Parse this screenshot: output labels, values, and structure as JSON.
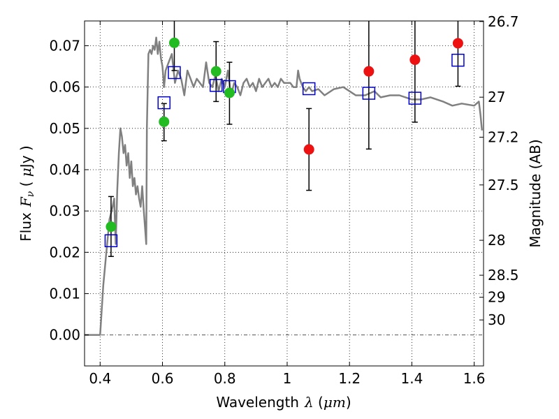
{
  "chart_data": {
    "type": "scatter",
    "xlabel": {
      "text": "Wavelength",
      "symbol": "λ",
      "unit_open": " (",
      "unit": "μm",
      "unit_close": ")"
    },
    "ylabel": {
      "text": "Flux",
      "symbol": "F",
      "subscript": "ν",
      "unit_open": " ( ",
      "unit": "μ",
      "unit_rest": "Jy )"
    },
    "y2label": "Magnitude (AB)",
    "xlim": [
      0.35,
      1.63
    ],
    "ylim": [
      -0.0075,
      0.076
    ],
    "x_ticks": [
      {
        "value": 0.4,
        "label": "0.4"
      },
      {
        "value": 0.6,
        "label": "0.6"
      },
      {
        "value": 0.8,
        "label": "0.8"
      },
      {
        "value": 1.0,
        "label": "1"
      },
      {
        "value": 1.2,
        "label": "1.2"
      },
      {
        "value": 1.4,
        "label": "1.4"
      },
      {
        "value": 1.6,
        "label": "1.6"
      }
    ],
    "y_ticks": [
      {
        "value": 0.0,
        "label": "0.00"
      },
      {
        "value": 0.01,
        "label": "0.01"
      },
      {
        "value": 0.02,
        "label": "0.02"
      },
      {
        "value": 0.03,
        "label": "0.03"
      },
      {
        "value": 0.04,
        "label": "0.04"
      },
      {
        "value": 0.05,
        "label": "0.05"
      },
      {
        "value": 0.06,
        "label": "0.06"
      },
      {
        "value": 0.07,
        "label": "0.07"
      }
    ],
    "mag_ticks": [
      {
        "mag": 26.7,
        "label": "26.7"
      },
      {
        "mag": 27,
        "label": "27"
      },
      {
        "mag": 27.2,
        "label": "27.2"
      },
      {
        "mag": 27.5,
        "label": "27.5"
      },
      {
        "mag": 28,
        "label": "28"
      },
      {
        "mag": 28.5,
        "label": "28.5"
      },
      {
        "mag": 29,
        "label": "29"
      },
      {
        "mag": 30,
        "label": "30"
      }
    ],
    "grid": true,
    "colors": {
      "spectrum": "#808080",
      "model": "#0000cc",
      "optical_obs": "#22bb22",
      "nir_obs": "#ee1111",
      "errorbar": "#000000",
      "zero_line": "#555555"
    },
    "spectrum": {
      "x": [
        0.35,
        0.39,
        0.4,
        0.41,
        0.415,
        0.42,
        0.43,
        0.44,
        0.445,
        0.45,
        0.455,
        0.46,
        0.465,
        0.47,
        0.475,
        0.48,
        0.485,
        0.49,
        0.495,
        0.5,
        0.505,
        0.51,
        0.515,
        0.52,
        0.525,
        0.53,
        0.535,
        0.54,
        0.545,
        0.548,
        0.55,
        0.555,
        0.56,
        0.565,
        0.57,
        0.575,
        0.58,
        0.585,
        0.59,
        0.595,
        0.6,
        0.605,
        0.61,
        0.62,
        0.63,
        0.64,
        0.65,
        0.66,
        0.67,
        0.68,
        0.69,
        0.7,
        0.71,
        0.72,
        0.73,
        0.74,
        0.75,
        0.76,
        0.77,
        0.78,
        0.79,
        0.8,
        0.81,
        0.82,
        0.83,
        0.84,
        0.85,
        0.86,
        0.87,
        0.88,
        0.89,
        0.9,
        0.91,
        0.92,
        0.93,
        0.94,
        0.95,
        0.96,
        0.97,
        0.98,
        0.99,
        1.0,
        1.01,
        1.02,
        1.03,
        1.035,
        1.04,
        1.05,
        1.06,
        1.07,
        1.08,
        1.1,
        1.12,
        1.15,
        1.18,
        1.2,
        1.22,
        1.25,
        1.28,
        1.3,
        1.33,
        1.36,
        1.4,
        1.43,
        1.46,
        1.5,
        1.53,
        1.56,
        1.6,
        1.615,
        1.62,
        1.625
      ],
      "y": [
        0.0,
        0.0,
        0.0,
        0.012,
        0.016,
        0.02,
        0.028,
        0.031,
        0.033,
        0.022,
        0.035,
        0.044,
        0.05,
        0.048,
        0.044,
        0.046,
        0.041,
        0.044,
        0.038,
        0.042,
        0.036,
        0.038,
        0.034,
        0.036,
        0.033,
        0.031,
        0.036,
        0.03,
        0.025,
        0.022,
        0.05,
        0.068,
        0.069,
        0.068,
        0.07,
        0.069,
        0.072,
        0.068,
        0.071,
        0.067,
        0.065,
        0.06,
        0.064,
        0.066,
        0.068,
        0.061,
        0.064,
        0.062,
        0.058,
        0.064,
        0.062,
        0.06,
        0.062,
        0.061,
        0.06,
        0.066,
        0.061,
        0.06,
        0.063,
        0.059,
        0.062,
        0.06,
        0.064,
        0.058,
        0.061,
        0.06,
        0.058,
        0.061,
        0.062,
        0.06,
        0.061,
        0.059,
        0.062,
        0.06,
        0.061,
        0.062,
        0.06,
        0.061,
        0.06,
        0.062,
        0.061,
        0.061,
        0.061,
        0.06,
        0.06,
        0.064,
        0.062,
        0.06,
        0.059,
        0.06,
        0.059,
        0.0595,
        0.058,
        0.0595,
        0.06,
        0.059,
        0.058,
        0.058,
        0.059,
        0.0575,
        0.058,
        0.058,
        0.057,
        0.057,
        0.0575,
        0.0565,
        0.0555,
        0.056,
        0.0555,
        0.0565,
        0.0535,
        0.0495
      ]
    },
    "model": {
      "x": [
        0.435,
        0.605,
        0.638,
        0.772,
        0.815,
        1.07,
        1.262,
        1.41,
        1.548
      ],
      "y": [
        0.0228,
        0.0562,
        0.0635,
        0.0604,
        0.0601,
        0.0596,
        0.0585,
        0.0573,
        0.0665
      ]
    },
    "optical_obs": {
      "x": [
        0.435,
        0.605,
        0.638,
        0.772,
        0.815
      ],
      "y": [
        0.0262,
        0.0516,
        0.0707,
        0.0638,
        0.0586
      ],
      "err_low": [
        0.019,
        0.047,
        0.064,
        0.0565,
        0.051
      ],
      "err_high": [
        0.0335,
        0.056,
        0.076,
        0.071,
        0.066
      ]
    },
    "nir_obs": {
      "x": [
        1.07,
        1.262,
        1.41,
        1.548
      ],
      "y": [
        0.0449,
        0.0638,
        0.0666,
        0.0706
      ],
      "err_low": [
        0.035,
        0.045,
        0.0515,
        0.0602
      ],
      "err_high": [
        0.0548,
        0.076,
        0.076,
        0.076
      ]
    }
  }
}
